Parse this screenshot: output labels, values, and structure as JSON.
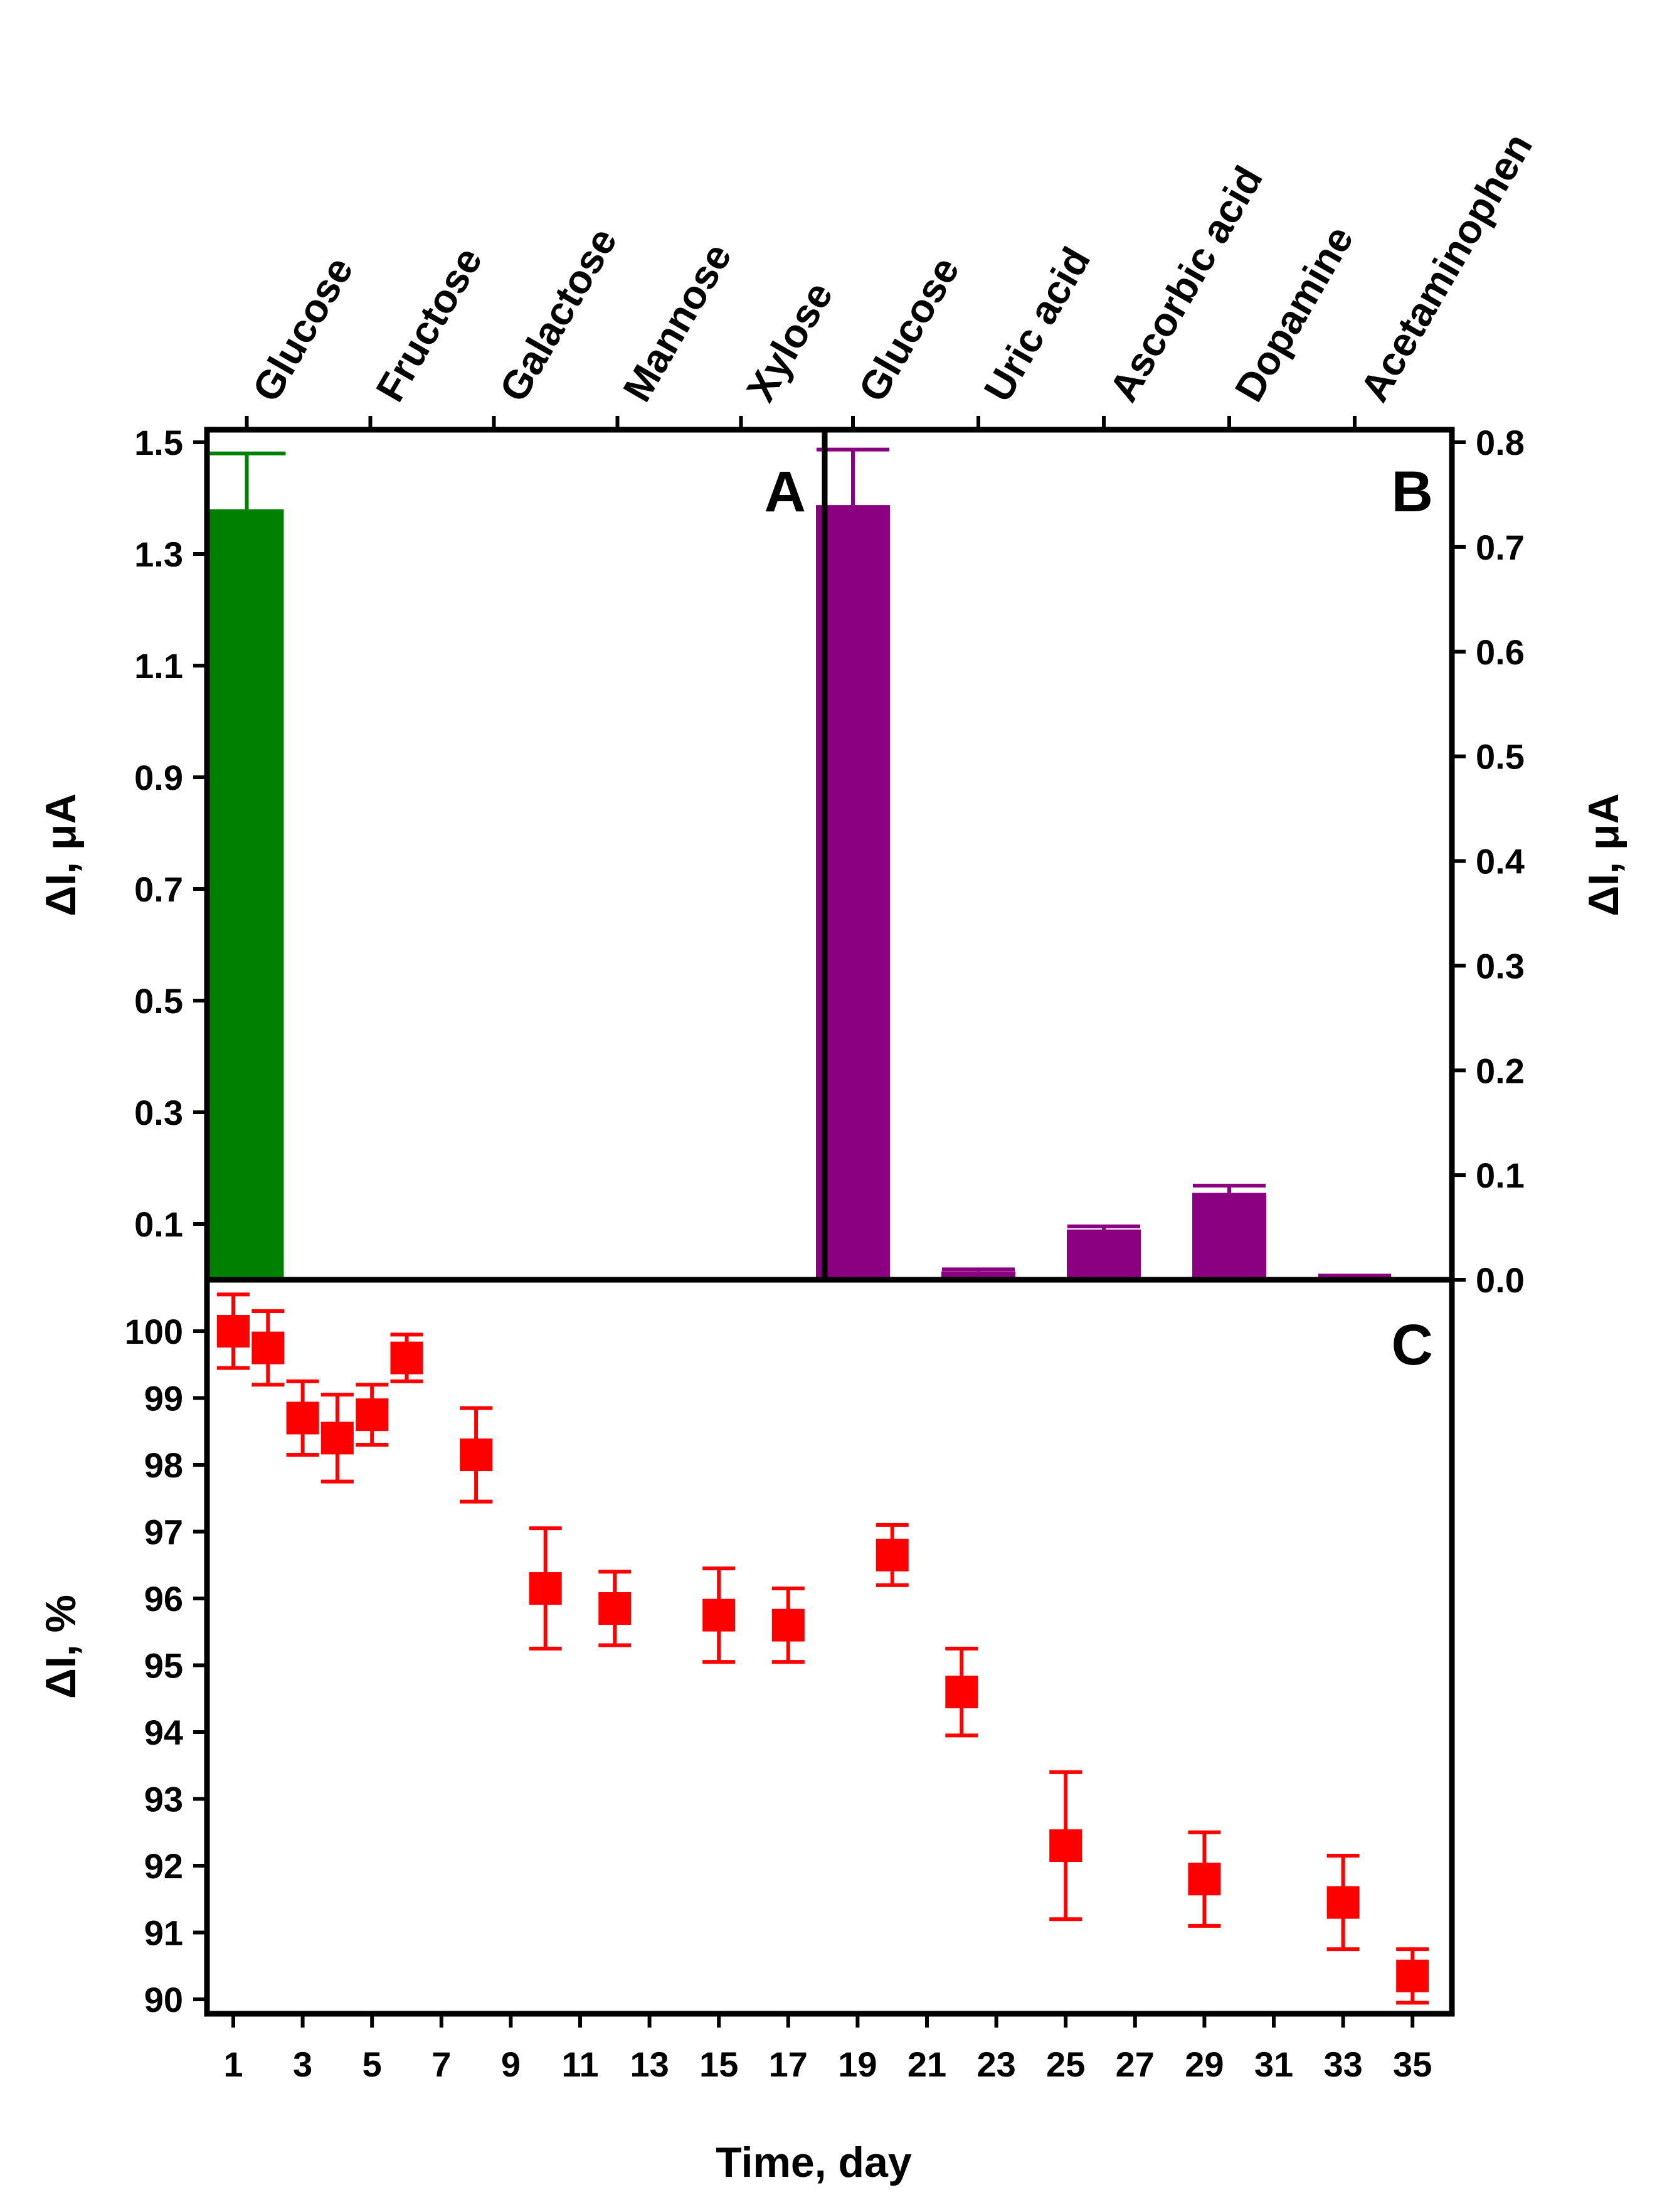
{
  "chart_data": [
    {
      "panel": "A",
      "type": "bar",
      "categories": [
        "Glucose",
        "Fructose",
        "Galactose",
        "Mannose",
        "Xylose"
      ],
      "values": [
        1.38,
        0,
        0,
        0,
        0
      ],
      "errors": [
        0.1,
        0,
        0,
        0,
        0
      ],
      "ylabel": "ΔI, μA",
      "ylim": [
        0,
        1.5
      ],
      "yticks": [
        "0.1",
        "0.3",
        "0.5",
        "0.7",
        "0.9",
        "1.1",
        "1.3",
        "1.5"
      ],
      "color": "#008000",
      "label": "A"
    },
    {
      "panel": "B",
      "type": "bar",
      "categories": [
        "Glucose",
        "Uric acid",
        "Ascorbic acid",
        "Dopamine",
        "Acetaminophen"
      ],
      "values": [
        0.74,
        0.008,
        0.048,
        0.083,
        0.003
      ],
      "errors": [
        0.053,
        0.002,
        0.003,
        0.007,
        0.001
      ],
      "ylabel": "ΔI, μA",
      "ylim": [
        0,
        0.8
      ],
      "yticks": [
        "0.0",
        "0.1",
        "0.2",
        "0.3",
        "0.4",
        "0.5",
        "0.6",
        "0.7",
        "0.8"
      ],
      "color": "#8B0080",
      "label": "B"
    },
    {
      "panel": "C",
      "type": "scatter",
      "x": [
        1,
        2,
        3,
        4,
        5,
        6,
        8,
        10,
        12,
        15,
        17,
        20,
        22,
        25,
        29,
        33,
        35
      ],
      "y": [
        100,
        99.75,
        98.7,
        98.4,
        98.75,
        99.6,
        98.15,
        96.15,
        95.85,
        95.75,
        95.6,
        96.65,
        94.6,
        92.3,
        91.8,
        91.45,
        90.35
      ],
      "errors": [
        0.55,
        0.55,
        0.55,
        0.65,
        0.45,
        0.35,
        0.7,
        0.9,
        0.55,
        0.7,
        0.55,
        0.45,
        0.65,
        1.1,
        0.7,
        0.7,
        0.4
      ],
      "xlabel": "Time, day",
      "ylabel": "ΔI, %",
      "xlim": [
        0,
        36
      ],
      "ylim": [
        89.6,
        100.6
      ],
      "xticks": [
        "1",
        "3",
        "5",
        "7",
        "9",
        "11",
        "13",
        "15",
        "17",
        "19",
        "21",
        "23",
        "25",
        "27",
        "29",
        "31",
        "33",
        "35"
      ],
      "yticks": [
        "90",
        "91",
        "92",
        "93",
        "94",
        "95",
        "96",
        "97",
        "98",
        "99",
        "100"
      ],
      "color": "#FF0000",
      "label": "C"
    }
  ]
}
